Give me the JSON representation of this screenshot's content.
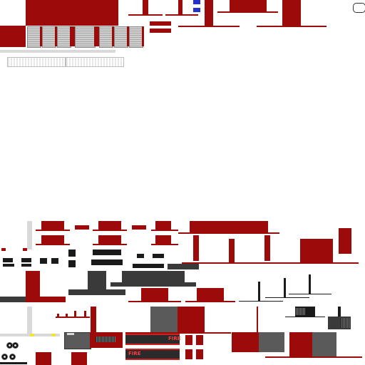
{
  "atlas": {
    "description_free": true,
    "signs": [
      {
        "text": "FIRE"
      },
      {
        "text": "FIRE"
      }
    ],
    "colors": {
      "primary_red": "#9c0a0a",
      "dark_grey": "#3a3a3a",
      "mid_grey": "#5a5a5a",
      "shutter_grey": "#c8c8c8",
      "sign_text": "#ff3b3b",
      "siren_blue": "#2233cc",
      "warning_yellow": "#f4e23c"
    },
    "icons": [
      "siren-light-icon",
      "wheel-icon",
      "garage-shutter-icon",
      "vent-grill-icon"
    ]
  }
}
